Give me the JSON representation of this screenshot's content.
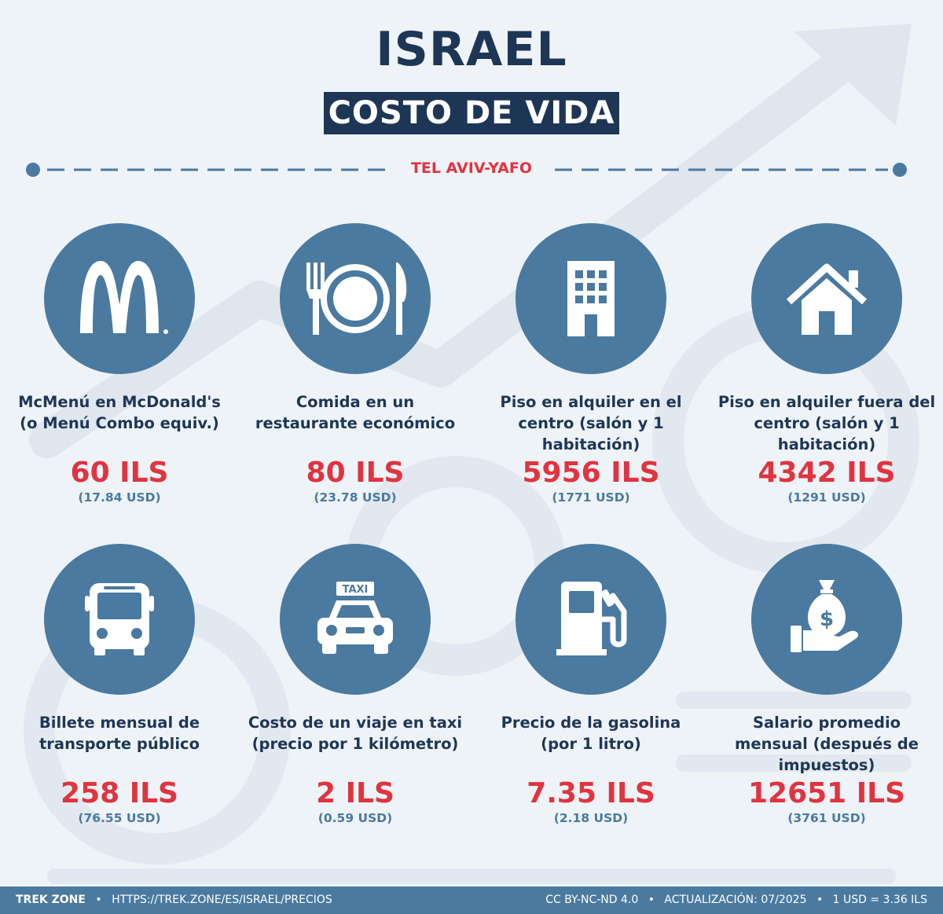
{
  "header": {
    "title": "ISRAEL",
    "subtitle": "COSTO DE VIDA",
    "city": "TEL AVIV-YAFO"
  },
  "items": [
    {
      "icon": "mcdonalds-logo-icon",
      "label": "McMenú en McDonald's (o Menú Combo equiv.)",
      "price": "60 ILS",
      "usd": "(17.84 USD)"
    },
    {
      "icon": "fork-plate-knife-icon",
      "label": "Comida en un restaurante económico",
      "price": "80 ILS",
      "usd": "(23.78 USD)"
    },
    {
      "icon": "building-icon",
      "label": "Piso en alquiler en el centro (salón y 1 habitación)",
      "price": "5956 ILS",
      "usd": "(1771 USD)"
    },
    {
      "icon": "house-icon",
      "label": "Piso en alquiler fuera del centro (salón y 1 habitación)",
      "price": "4342 ILS",
      "usd": "(1291 USD)"
    },
    {
      "icon": "bus-icon",
      "label": "Billete mensual de transporte público",
      "price": "258 ILS",
      "usd": "(76.55 USD)"
    },
    {
      "icon": "taxi-icon",
      "label": "Costo de un viaje en taxi (precio por 1 kilómetro)",
      "price": "2 ILS",
      "usd": "(0.59 USD)"
    },
    {
      "icon": "gas-pump-icon",
      "label": "Precio de la gasolina (por 1 litro)",
      "price": "7.35 ILS",
      "usd": "(2.18 USD)"
    },
    {
      "icon": "money-bag-hand-icon",
      "label": "Salario promedio mensual (después de impuestos)",
      "price": "12651 ILS",
      "usd": "(3761 USD)"
    }
  ],
  "taxi_sign": "TAXI",
  "footer": {
    "brand": "TREK ZONE",
    "url": "HTTPS://TREK.ZONE/ES/ISRAEL/PRECIOS",
    "license": "CC BY-NC-ND 4.0",
    "update": "ACTUALIZACIÓN: 07/2025",
    "rate": "1 USD = 3.36 ILS"
  },
  "colors": {
    "navy": "#1e3656",
    "accent_red": "#e0343f",
    "icon_blue": "#4a7aa0",
    "background": "#eef3f8"
  }
}
